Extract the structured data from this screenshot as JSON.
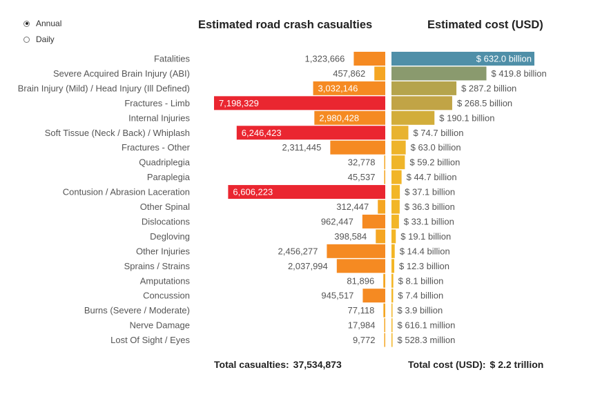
{
  "controls": {
    "options": [
      {
        "label": "Annual",
        "selected": true
      },
      {
        "label": "Daily",
        "selected": false
      }
    ]
  },
  "headings": {
    "casualties": "Estimated road crash casualties",
    "cost": "Estimated cost (USD)"
  },
  "totals": {
    "casualties_label": "Total casualties:",
    "casualties_value": "37,534,873",
    "cost_label": "Total cost (USD):",
    "cost_value": "$ 2.2 trillion"
  },
  "chart_data": [
    {
      "type": "bar",
      "orientation": "horizontal",
      "direction": "right-to-left",
      "title": "Estimated road crash casualties",
      "categories": [
        "Fatalities",
        "Severe Acquired Brain Injury (ABI)",
        "Brain Injury (Mild) / Head Injury (Ill Defined)",
        "Fractures - Limb",
        "Internal Injuries",
        "Soft Tissue (Neck / Back) / Whiplash",
        "Fractures - Other",
        "Quadriplegia",
        "Paraplegia",
        "Contusion / Abrasion Laceration",
        "Other Spinal",
        "Dislocations",
        "Degloving",
        "Other Injuries",
        "Sprains / Strains",
        "Amputations",
        "Concussion",
        "Burns (Severe / Moderate)",
        "Nerve Damage",
        "Lost Of Sight / Eyes"
      ],
      "values": [
        1323666,
        457862,
        3032146,
        7198329,
        2980428,
        6246423,
        2311445,
        32778,
        45537,
        6606223,
        312447,
        962447,
        398584,
        2456277,
        2037994,
        81896,
        945517,
        77118,
        17984,
        9772
      ],
      "labels": [
        "1,323,666",
        "457,862",
        "3,032,146",
        "7,198,329",
        "2,980,428",
        "6,246,423",
        "2,311,445",
        "32,778",
        "45,537",
        "6,606,223",
        "312,447",
        "962,447",
        "398,584",
        "2,456,277",
        "2,037,994",
        "81,896",
        "945,517",
        "77,118",
        "17,984",
        "9,772"
      ],
      "colors": {
        "low": "#f5a623",
        "mid": "#f58a22",
        "high": "#ea2630"
      }
    },
    {
      "type": "bar",
      "orientation": "horizontal",
      "title": "Estimated cost (USD)",
      "categories": [
        "Fatalities",
        "Severe Acquired Brain Injury (ABI)",
        "Brain Injury (Mild) / Head Injury (Ill Defined)",
        "Fractures - Limb",
        "Internal Injuries",
        "Soft Tissue (Neck / Back) / Whiplash",
        "Fractures - Other",
        "Quadriplegia",
        "Paraplegia",
        "Contusion / Abrasion Laceration",
        "Other Spinal",
        "Dislocations",
        "Degloving",
        "Other Injuries",
        "Sprains / Strains",
        "Amputations",
        "Concussion",
        "Burns (Severe / Moderate)",
        "Nerve Damage",
        "Lost Of Sight / Eyes"
      ],
      "values": [
        632.0,
        419.8,
        287.2,
        268.5,
        190.1,
        74.7,
        63.0,
        59.2,
        44.7,
        37.1,
        36.3,
        33.1,
        19.1,
        14.4,
        12.3,
        8.1,
        7.4,
        3.9,
        0.6161,
        0.5283
      ],
      "unit": "billion USD",
      "labels": [
        "$ 632.0 billion",
        "$ 419.8 billion",
        "$ 287.2 billion",
        "$ 268.5 billion",
        "$ 190.1 billion",
        "$ 74.7 billion",
        "$ 63.0 billion",
        "$ 59.2 billion",
        "$ 44.7 billion",
        "$ 37.1 billion",
        "$ 36.3 billion",
        "$ 33.1 billion",
        "$ 19.1 billion",
        "$ 14.4 billion",
        "$ 12.3 billion",
        "$ 8.1 billion",
        "$ 7.4 billion",
        "$ 3.9 billion",
        "$ 616.1 million",
        "$ 528.3 million"
      ],
      "colors": [
        "#4f8fa8",
        "#8a9a6e",
        "#b5a44c",
        "#c1a446",
        "#d2ad3a",
        "#e8b330",
        "#eeb42b",
        "#efb52a",
        "#f1b528",
        "#f2b627",
        "#f2b627",
        "#f2b627",
        "#f3b626",
        "#f3b626",
        "#f3b626",
        "#f3b626",
        "#f3b626",
        "#f3b626",
        "#f3b626",
        "#f3b626"
      ]
    }
  ]
}
